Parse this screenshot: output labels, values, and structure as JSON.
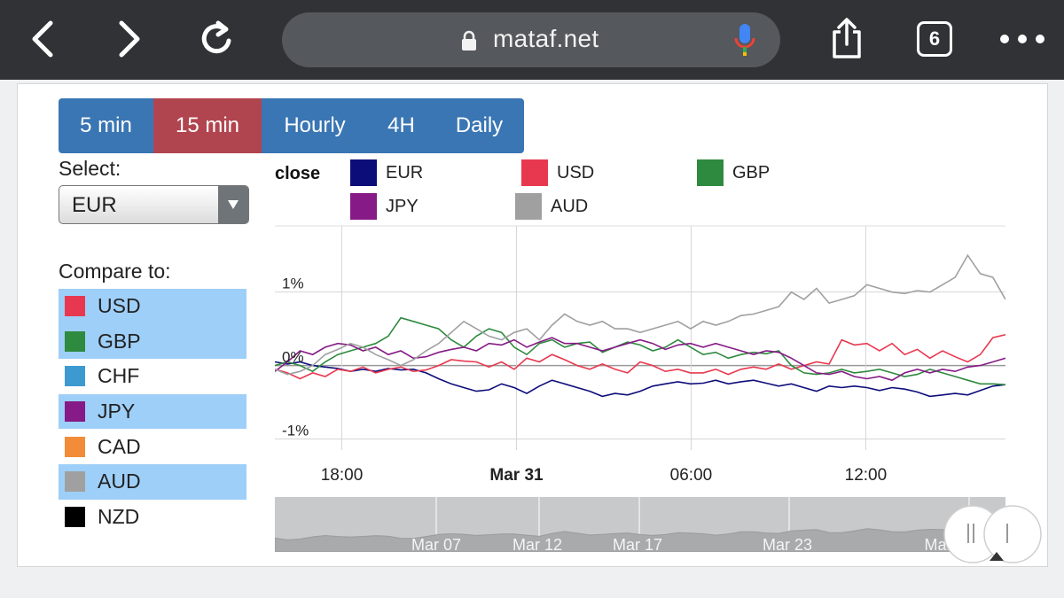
{
  "browser": {
    "url": "mataf.net",
    "tab_count": "6",
    "icons": [
      "back-icon",
      "forward-icon",
      "reload-icon",
      "lock-icon",
      "microphone-icon",
      "share-icon",
      "tabs-icon",
      "more-icon"
    ]
  },
  "timeframes": [
    {
      "label": "5 min",
      "active": false
    },
    {
      "label": "15 min",
      "active": true
    },
    {
      "label": "Hourly",
      "active": false
    },
    {
      "label": "4H",
      "active": false
    },
    {
      "label": "Daily",
      "active": false
    }
  ],
  "select": {
    "label": "Select:",
    "value": "EUR"
  },
  "compare": {
    "label": "Compare to:",
    "items": [
      {
        "label": "USD",
        "color": "#e8384f",
        "checked": true
      },
      {
        "label": "GBP",
        "color": "#2e8a3e",
        "checked": true
      },
      {
        "label": "CHF",
        "color": "#3d9ad1",
        "checked": false
      },
      {
        "label": "JPY",
        "color": "#861a86",
        "checked": true
      },
      {
        "label": "CAD",
        "color": "#f28c38",
        "checked": false
      },
      {
        "label": "AUD",
        "color": "#a0a0a0",
        "checked": true
      },
      {
        "label": "NZD",
        "color": "#000000",
        "checked": false
      }
    ]
  },
  "legend": {
    "title": "close",
    "entries": [
      {
        "label": "EUR",
        "color": "#0d0d7a"
      },
      {
        "label": "USD",
        "color": "#e8384f"
      },
      {
        "label": "GBP",
        "color": "#2e8a3e"
      },
      {
        "label": "JPY",
        "color": "#861a86"
      },
      {
        "label": "AUD",
        "color": "#a0a0a0"
      }
    ]
  },
  "chart_data": {
    "type": "line",
    "title": "",
    "xlabel": "",
    "ylabel": "",
    "ylim": [
      -1.15,
      1.9
    ],
    "y_ticks": [
      {
        "value": 1,
        "label": "1%"
      },
      {
        "value": 0,
        "label": "0%"
      },
      {
        "value": -1,
        "label": "-1%"
      }
    ],
    "x_ticks": [
      {
        "x": 18,
        "label": "18:00",
        "bold": false
      },
      {
        "x": 24,
        "label": "Mar 31",
        "bold": true
      },
      {
        "x": 30,
        "label": "06:00",
        "bold": false
      },
      {
        "x": 36,
        "label": "12:00",
        "bold": false
      }
    ],
    "xlim": [
      15.7,
      40.8
    ],
    "x_unit": "hours since Mar 30 00:00",
    "grid": true,
    "series": [
      {
        "name": "EUR",
        "color": "#0d0d7a",
        "values": [
          0.05,
          0.02,
          0.05,
          0.0,
          -0.02,
          -0.04,
          -0.08,
          -0.05,
          -0.08,
          -0.04,
          -0.06,
          -0.05,
          -0.1,
          -0.18,
          -0.25,
          -0.3,
          -0.35,
          -0.33,
          -0.25,
          -0.3,
          -0.38,
          -0.28,
          -0.2,
          -0.25,
          -0.3,
          -0.35,
          -0.42,
          -0.38,
          -0.4,
          -0.35,
          -0.28,
          -0.25,
          -0.22,
          -0.25,
          -0.24,
          -0.2,
          -0.25,
          -0.22,
          -0.2,
          -0.24,
          -0.28,
          -0.25,
          -0.3,
          -0.35,
          -0.28,
          -0.3,
          -0.28,
          -0.3,
          -0.34,
          -0.3,
          -0.32,
          -0.36,
          -0.42,
          -0.4,
          -0.38,
          -0.4,
          -0.34,
          -0.28,
          -0.26
        ]
      },
      {
        "name": "USD",
        "color": "#e8384f",
        "values": [
          -0.05,
          -0.1,
          -0.18,
          -0.1,
          -0.15,
          -0.05,
          -0.08,
          -0.02,
          -0.1,
          -0.05,
          -0.02,
          -0.08,
          -0.06,
          0.0,
          0.08,
          0.06,
          0.05,
          -0.02,
          0.05,
          -0.05,
          0.1,
          0.05,
          0.15,
          0.08,
          0.0,
          -0.05,
          0.02,
          -0.05,
          -0.1,
          0.05,
          0.0,
          -0.08,
          -0.05,
          -0.1,
          -0.1,
          -0.05,
          -0.12,
          -0.05,
          -0.02,
          -0.05,
          0.02,
          -0.05,
          0.0,
          0.05,
          0.02,
          0.35,
          0.28,
          0.3,
          0.2,
          0.3,
          0.15,
          0.22,
          0.1,
          0.2,
          0.12,
          0.05,
          0.15,
          0.38,
          0.42
        ]
      },
      {
        "name": "GBP",
        "color": "#2e8a3e",
        "values": [
          0.0,
          0.05,
          0.0,
          -0.08,
          0.05,
          0.15,
          0.2,
          0.25,
          0.3,
          0.4,
          0.65,
          0.6,
          0.55,
          0.5,
          0.35,
          0.25,
          0.4,
          0.5,
          0.45,
          0.25,
          0.15,
          0.3,
          0.35,
          0.25,
          0.3,
          0.32,
          0.18,
          0.25,
          0.32,
          0.28,
          0.2,
          0.25,
          0.35,
          0.25,
          0.15,
          0.18,
          0.1,
          0.15,
          0.18,
          0.16,
          0.2,
          0.0,
          -0.1,
          -0.12,
          -0.1,
          -0.05,
          -0.1,
          -0.08,
          -0.05,
          -0.1,
          -0.15,
          -0.12,
          -0.05,
          -0.1,
          -0.15,
          -0.2,
          -0.25,
          -0.25,
          -0.26
        ]
      },
      {
        "name": "JPY",
        "color": "#861a86",
        "values": [
          -0.08,
          0.05,
          0.2,
          0.15,
          0.25,
          0.3,
          0.28,
          0.2,
          0.25,
          0.15,
          0.2,
          0.1,
          0.12,
          0.18,
          0.22,
          0.25,
          0.2,
          0.3,
          0.28,
          0.35,
          0.25,
          0.32,
          0.38,
          0.3,
          0.3,
          0.25,
          0.2,
          0.25,
          0.3,
          0.35,
          0.3,
          0.22,
          0.28,
          0.3,
          0.25,
          0.3,
          0.25,
          0.2,
          0.15,
          0.2,
          0.18,
          0.1,
          0.0,
          -0.1,
          -0.12,
          -0.08,
          -0.15,
          -0.18,
          -0.15,
          -0.2,
          -0.1,
          -0.05,
          -0.1,
          -0.05,
          -0.08,
          -0.02,
          0.0,
          0.05,
          0.1
        ]
      },
      {
        "name": "AUD",
        "color": "#a0a0a0",
        "values": [
          -0.05,
          -0.12,
          -0.08,
          0.0,
          0.15,
          0.22,
          0.3,
          0.25,
          0.15,
          0.08,
          0.0,
          0.08,
          0.2,
          0.3,
          0.45,
          0.6,
          0.5,
          0.4,
          0.35,
          0.45,
          0.5,
          0.35,
          0.55,
          0.7,
          0.6,
          0.55,
          0.6,
          0.5,
          0.5,
          0.45,
          0.5,
          0.55,
          0.6,
          0.5,
          0.6,
          0.55,
          0.6,
          0.68,
          0.7,
          0.75,
          0.8,
          1.0,
          0.9,
          1.05,
          0.85,
          0.9,
          0.95,
          1.1,
          1.05,
          1.0,
          0.98,
          1.02,
          1.0,
          1.1,
          1.2,
          1.5,
          1.25,
          1.2,
          0.9
        ]
      }
    ]
  },
  "navigator": {
    "labels": [
      "Mar 07",
      "Mar 12",
      "Mar 17",
      "Mar 23",
      "Mar"
    ]
  }
}
